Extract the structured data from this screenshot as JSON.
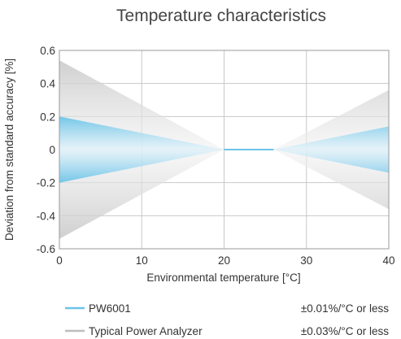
{
  "chart_data": {
    "type": "area",
    "title": "Temperature characteristics",
    "xlabel": "Environmental temperature [°C]",
    "ylabel": "Deviation from standard accuracy [%]",
    "xlim": [
      0,
      40
    ],
    "ylim": [
      -0.6,
      0.6
    ],
    "xticks": [
      "0",
      "10",
      "20",
      "30",
      "40"
    ],
    "yticks": [
      "0.6",
      "0.4",
      "0.2",
      "0",
      "-0.2",
      "-0.4",
      "-0.6"
    ],
    "grid": true,
    "legend_position": "bottom",
    "series": [
      {
        "name": "PW6001",
        "note": "±0.01%/°C or less",
        "color": "#6cc4e8",
        "upper": {
          "x": [
            0,
            20,
            26,
            40
          ],
          "y": [
            0.2,
            0,
            0,
            0.14
          ]
        },
        "lower": {
          "x": [
            0,
            20,
            26,
            40
          ],
          "y": [
            -0.2,
            0,
            0,
            -0.14
          ]
        }
      },
      {
        "name": "Typical Power Analyzer",
        "note": "±0.03%/°C or less",
        "color": "#bdbdbd",
        "upper": {
          "x": [
            0,
            20,
            26,
            40
          ],
          "y": [
            0.54,
            0,
            0,
            0.36
          ]
        },
        "lower": {
          "x": [
            0,
            20,
            26,
            40
          ],
          "y": [
            -0.54,
            0,
            0,
            -0.36
          ]
        }
      }
    ]
  }
}
